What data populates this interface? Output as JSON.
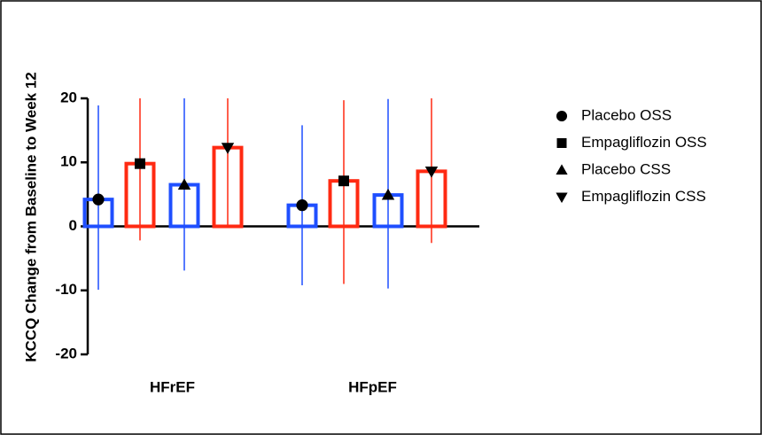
{
  "chart_data": {
    "type": "bar",
    "y_label": "KCCQ Change from Baseline to Week 12",
    "categories": [
      "HFrEF",
      "HFpEF"
    ],
    "ylim": [
      -20,
      20
    ],
    "yticks": [
      20,
      10,
      0,
      -10,
      -20
    ],
    "series": [
      {
        "name": "Placebo OSS",
        "color": "#1f4fff",
        "marker": "circle",
        "values": [
          4.2,
          3.3
        ],
        "lower": [
          -9.9,
          -9.2
        ],
        "upper": [
          18.9,
          15.8
        ]
      },
      {
        "name": "Empagliflozin OSS",
        "color": "#ff2a12",
        "marker": "square",
        "values": [
          9.8,
          7.1
        ],
        "lower": [
          -2.2,
          -9.0
        ],
        "upper": [
          20,
          19.7
        ]
      },
      {
        "name": "Placebo CSS",
        "color": "#1f4fff",
        "marker": "triangle-up",
        "values": [
          6.5,
          4.9
        ],
        "lower": [
          -6.9,
          -9.7
        ],
        "upper": [
          20,
          19.9
        ]
      },
      {
        "name": "Empagliflozin CSS",
        "color": "#ff2a12",
        "marker": "triangle-down",
        "values": [
          12.3,
          8.6
        ],
        "lower": [
          -0.1,
          -2.6
        ],
        "upper": [
          20,
          20
        ]
      }
    ]
  }
}
